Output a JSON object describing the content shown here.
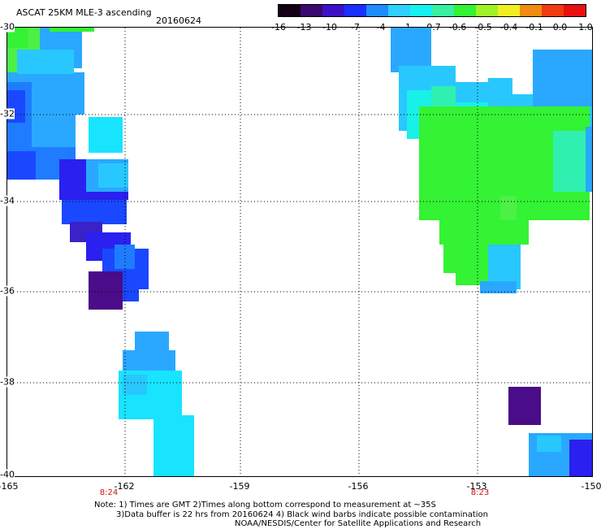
{
  "title": "ASCAT 25KM MLE-3 ascending",
  "date": "20160624",
  "colorbar": {
    "labels": [
      "-16",
      "-13",
      "-10",
      "-7",
      "-4",
      "-1",
      "-0.7",
      "-0.6",
      "-0.5",
      "-0.4",
      "-0.1",
      "0.0",
      "1.0"
    ],
    "colors": [
      "#140014",
      "#3a0a6e",
      "#3c12c8",
      "#1a30ff",
      "#1f8cff",
      "#2ed0ff",
      "#17f0f0",
      "#38f0a0",
      "#34f234",
      "#a0f228",
      "#f0f020",
      "#f08c10",
      "#f03c10",
      "#e81010"
    ]
  },
  "lat_labels": [
    "-30",
    "-32",
    "-34",
    "-36",
    "-38",
    "-40"
  ],
  "lon_labels": [
    "-165",
    "-162",
    "-159",
    "-156",
    "-153",
    "-150"
  ],
  "time_labels": [
    "8:24",
    "8:23"
  ],
  "notes": [
    "Note: 1) Times are GMT 2)Times along bottom correspond to measurement at ~35S",
    "3)Data buffer is 22 hrs from 20160624 4) Black wind barbs indicate possible contamination",
    "NOAA/NESDIS/Center for Satellite Applications and Research"
  ]
}
